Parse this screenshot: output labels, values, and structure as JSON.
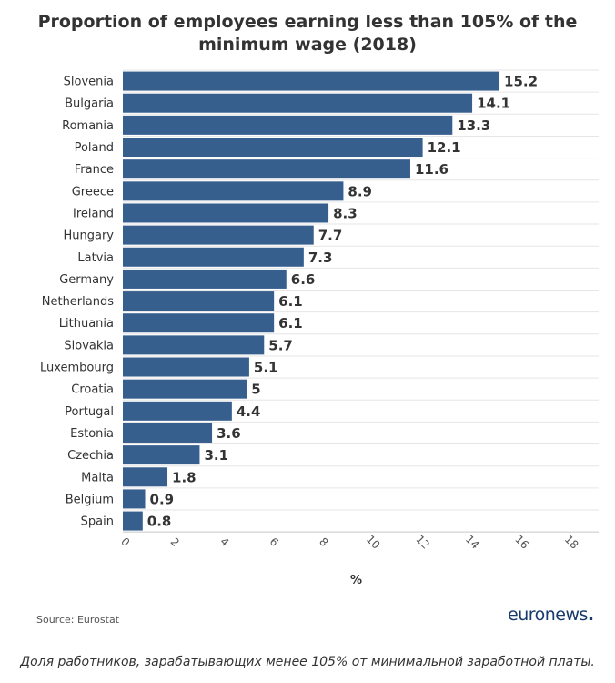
{
  "chart_data": {
    "type": "bar",
    "orientation": "horizontal",
    "title": "Proportion of employees earning less than 105% of the minimum wage (2018)",
    "xlabel": "%",
    "categories": [
      "Slovenia",
      "Bulgaria",
      "Romania",
      "Poland",
      "France",
      "Greece",
      "Ireland",
      "Hungary",
      "Latvia",
      "Germany",
      "Netherlands",
      "Lithuania",
      "Slovakia",
      "Luxembourg",
      "Croatia",
      "Portugal",
      "Estonia",
      "Czechia",
      "Malta",
      "Belgium",
      "Spain"
    ],
    "values": [
      15.2,
      14.1,
      13.3,
      12.1,
      11.6,
      8.9,
      8.3,
      7.7,
      7.3,
      6.6,
      6.1,
      6.1,
      5.7,
      5.1,
      5,
      4.4,
      3.6,
      3.1,
      1.8,
      0.9,
      0.8
    ],
    "value_labels": [
      "15.2",
      "14.1",
      "13.3",
      "12.1",
      "11.6",
      "8.9",
      "8.3",
      "7.7",
      "7.3",
      "6.6",
      "6.1",
      "6.1",
      "5.7",
      "5.1",
      "5",
      "4.4",
      "3.6",
      "3.1",
      "1.8",
      "0.9",
      "0.8"
    ],
    "xticks": [
      "0",
      "2",
      "4",
      "6",
      "8",
      "10",
      "12",
      "14",
      "16",
      "18"
    ],
    "xlim": [
      0,
      19.2
    ],
    "grid": true,
    "bar_color": "#375f8e"
  },
  "source": "Source: Eurostat",
  "logo": {
    "text": "euronews",
    "dot": "."
  },
  "caption": "Доля работников, зарабатывающих менее 105% от минимальной заработной платы."
}
